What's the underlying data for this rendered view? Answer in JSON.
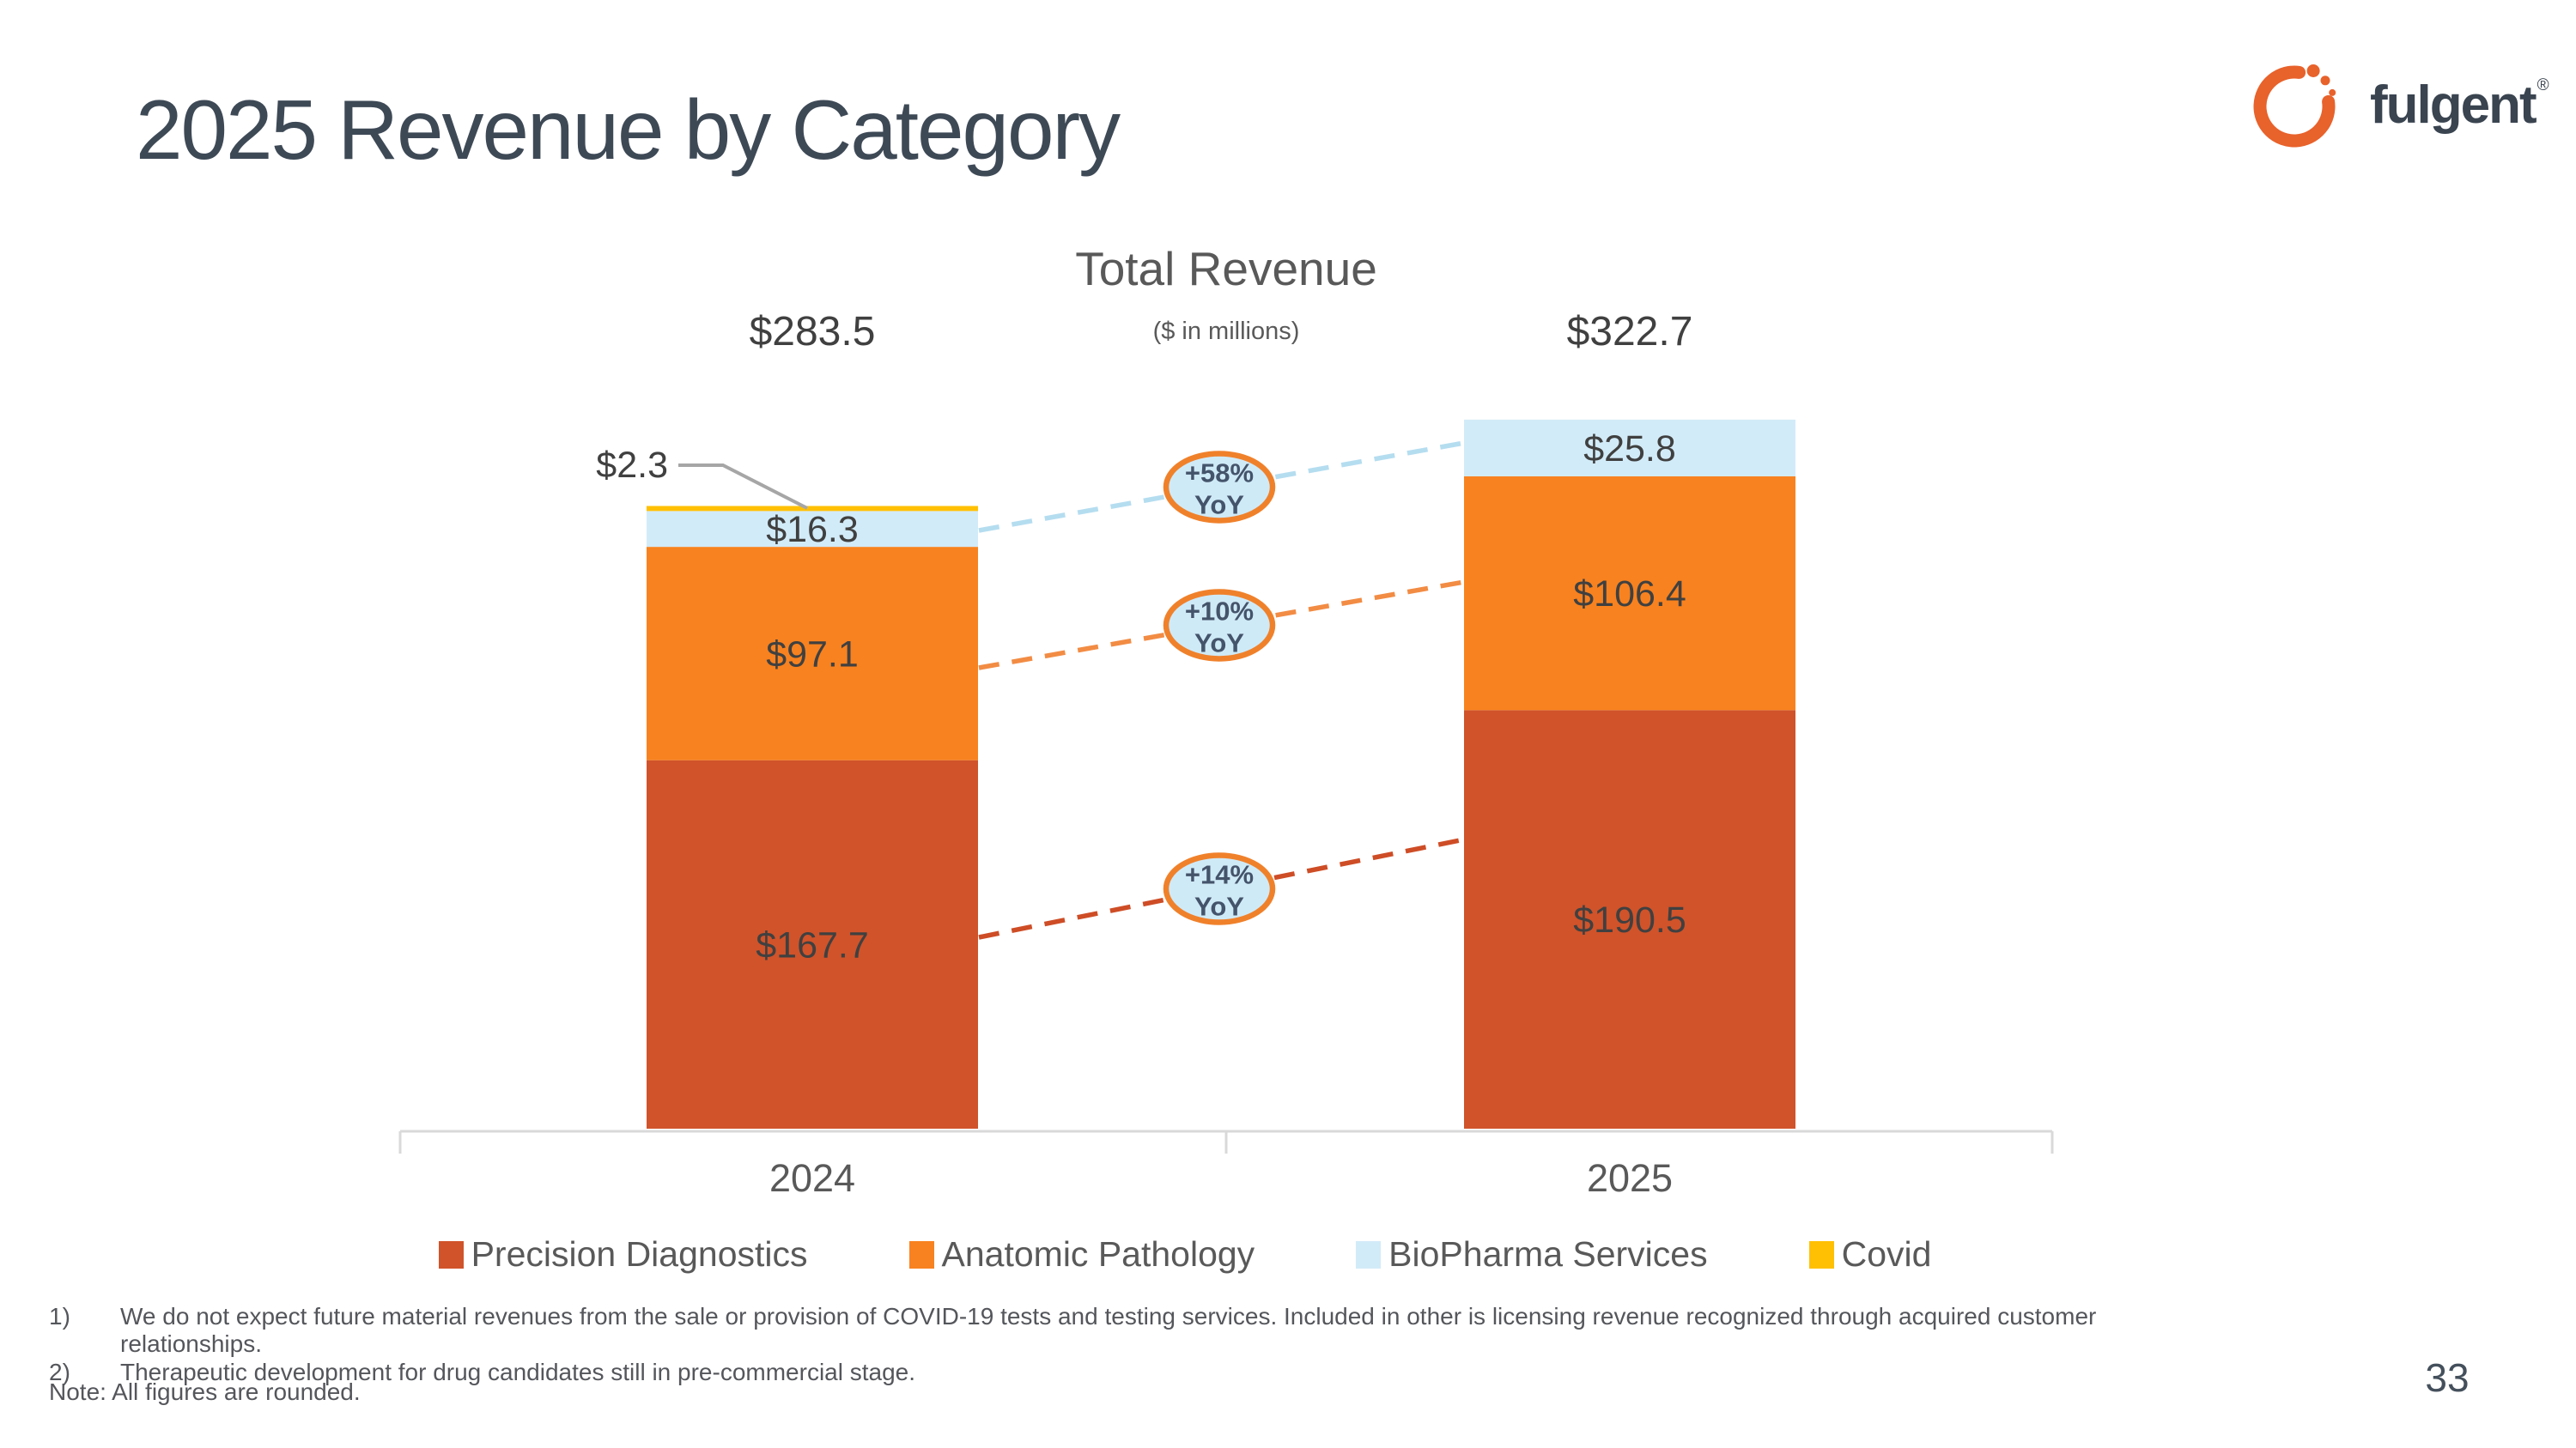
{
  "slide": {
    "title": "2025 Revenue by Category",
    "page_number": "33",
    "logo": {
      "text": "fulgent",
      "registered": "®"
    }
  },
  "chart": {
    "title": "Total Revenue",
    "subtitle": "($ in millions)"
  },
  "chart_data": {
    "type": "bar",
    "stacked": true,
    "title": "Total Revenue",
    "subtitle": "($ in millions)",
    "unit": "USD millions",
    "categories": [
      "2024",
      "2025"
    ],
    "series": [
      {
        "name": "Precision Diagnostics",
        "color": "#d0532a",
        "values": [
          167.7,
          190.5
        ],
        "labels": [
          "$167.7",
          "$190.5"
        ]
      },
      {
        "name": "Anatomic Pathology",
        "color": "#f8821f",
        "values": [
          97.1,
          106.4
        ],
        "labels": [
          "$97.1",
          "$106.4"
        ]
      },
      {
        "name": "BioPharma Services",
        "color": "#d2ebf8",
        "values": [
          16.3,
          25.8
        ],
        "labels": [
          "$16.3",
          "$25.8"
        ]
      },
      {
        "name": "Covid",
        "color": "#ffc003",
        "values": [
          2.3,
          0
        ],
        "labels": [
          "$2.3",
          ""
        ],
        "label_external": true
      }
    ],
    "totals": [
      283.5,
      322.7
    ],
    "total_labels": [
      "$283.5",
      "$322.7"
    ],
    "yoy_callouts": [
      {
        "line1": "+58%",
        "line2": "YoY",
        "series": "BioPharma Services",
        "line_color": "#b5ddf0"
      },
      {
        "line1": "+10%",
        "line2": "YoY",
        "series": "Anatomic Pathology",
        "line_color": "#f28c44"
      },
      {
        "line1": "+14%",
        "line2": "YoY",
        "series": "Precision Diagnostics",
        "line_color": "#ce4d26"
      }
    ],
    "external_label": {
      "series": "Covid",
      "category": "2024",
      "text": "$2.3"
    },
    "legend_position": "bottom",
    "ylim": [
      0,
      340
    ],
    "grid": false
  },
  "theme": {
    "title_color": "#3e4956",
    "muted_text": "#595959",
    "label_color": "#404040",
    "footnote_color": "#54565b",
    "axis_color": "#d9d9d9",
    "leader_color": "#a6a6a6",
    "oval_fill": "#cfeaf7",
    "oval_border": "#f0812b",
    "oval_text": "#44546a",
    "logo_orange": "#e8622b",
    "logo_slate": "#3a4450"
  },
  "footnotes": [
    {
      "num": "1)",
      "text": "We do not expect future material revenues from the sale or provision of COVID-19 tests and testing services. Included in other is licensing revenue recognized through acquired customer relationships."
    },
    {
      "num": "2)",
      "text": "Therapeutic development for drug candidates still in pre-commercial stage."
    }
  ],
  "note": "Note: All figures are rounded."
}
